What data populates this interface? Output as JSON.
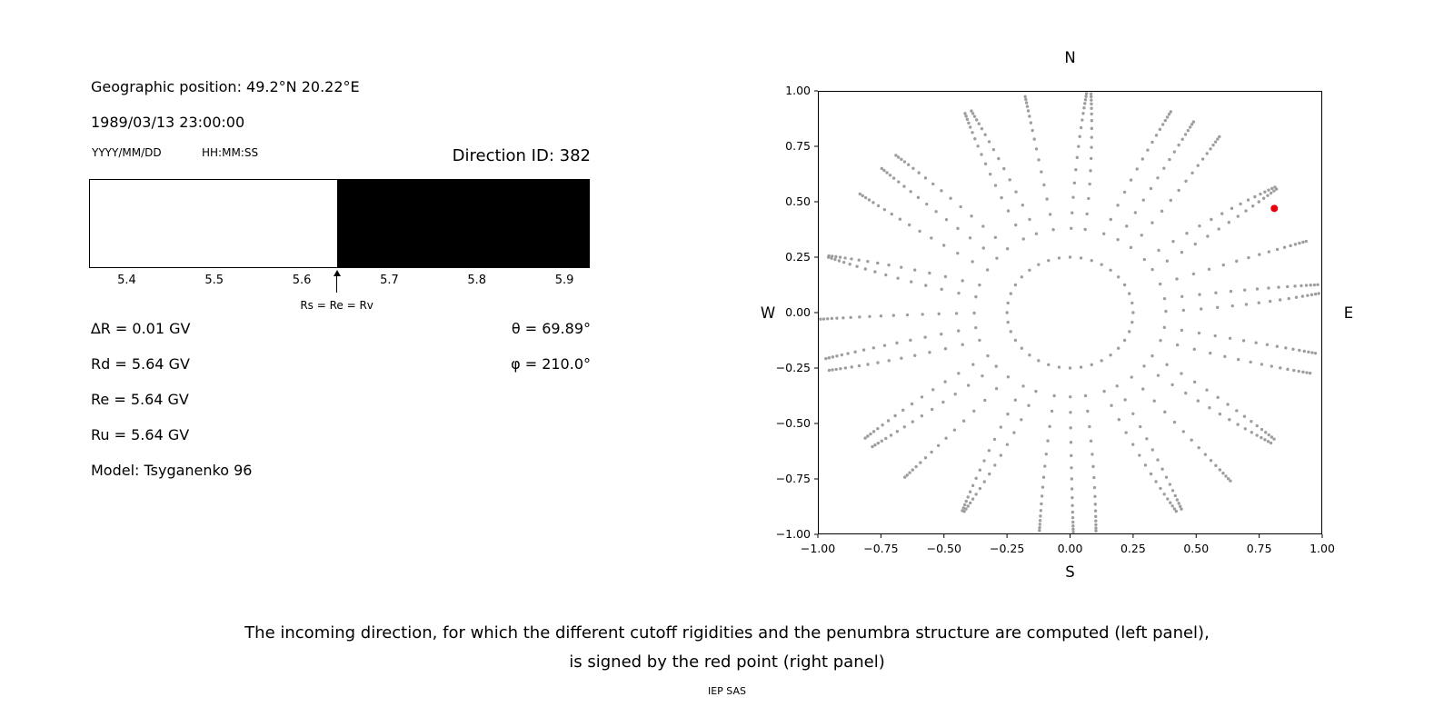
{
  "left_panel": {
    "geo_position": "Geographic position: 49.2°N 20.22°E",
    "datetime": "1989/03/13 23:00:00",
    "date_format_label": "YYYY/MM/DD",
    "time_format_label": "HH:MM:SS",
    "direction_id": "Direction ID: 382",
    "params": [
      "∆R = 0.01 GV",
      "Rd = 5.64 GV",
      "Re = 5.64 GV",
      "Ru = 5.64 GV",
      "Model: Tsyganenko 96"
    ],
    "angles": [
      "θ = 69.89°",
      "φ = 210.0°"
    ]
  },
  "caption": {
    "line1": "The incoming direction, for which the different cutoff rigidities and the penumbra structure are computed (left panel),",
    "line2": "is signed by the red point (right panel)",
    "credit": "IEP SAS"
  },
  "chart_data": [
    {
      "id": "penumbra",
      "type": "bar",
      "title": "",
      "x_range": [
        5.357,
        5.929
      ],
      "boundary": 5.64,
      "left_color": "#ffffff",
      "right_color": "#000000",
      "x_ticks": [
        {
          "label": "5.4",
          "value": 5.4
        },
        {
          "label": "5.5",
          "value": 5.5
        },
        {
          "label": "5.6",
          "value": 5.6
        },
        {
          "label": "5.7",
          "value": 5.7
        },
        {
          "label": "5.8",
          "value": 5.8
        },
        {
          "label": "5.9",
          "value": 5.9
        }
      ],
      "arrow": {
        "x": 5.64,
        "label": "Rs = Re = Rv"
      }
    },
    {
      "id": "direction-map",
      "type": "scatter",
      "xlim": [
        -1,
        1
      ],
      "ylim": [
        -1,
        1
      ],
      "grid": false,
      "compass_labels": {
        "top": "N",
        "bottom": "S",
        "left": "W",
        "right": "E"
      },
      "x_ticks": [
        {
          "label": "−1.00",
          "value": -1.0
        },
        {
          "label": "−0.75",
          "value": -0.75
        },
        {
          "label": "−0.50",
          "value": -0.5
        },
        {
          "label": "−0.25",
          "value": -0.25
        },
        {
          "label": "0.00",
          "value": 0.0
        },
        {
          "label": "0.25",
          "value": 0.25
        },
        {
          "label": "0.50",
          "value": 0.5
        },
        {
          "label": "0.75",
          "value": 0.75
        },
        {
          "label": "1.00",
          "value": 1.0
        }
      ],
      "y_ticks": [
        {
          "label": "1.00",
          "value": 1.0
        },
        {
          "label": "0.75",
          "value": 0.75
        },
        {
          "label": "0.50",
          "value": 0.5
        },
        {
          "label": "0.25",
          "value": 0.25
        },
        {
          "label": "0.00",
          "value": 0.0
        },
        {
          "label": "−0.25",
          "value": -0.25
        },
        {
          "label": "−0.50",
          "value": -0.5
        },
        {
          "label": "−0.75",
          "value": -0.75
        },
        {
          "label": "−1.00",
          "value": -1.0
        }
      ],
      "dot_color": "#949494",
      "spokes": {
        "count": 36,
        "angle_step_deg": 10,
        "radii": [
          0.25,
          0.38,
          0.45,
          0.52,
          0.585,
          0.645,
          0.7,
          0.75,
          0.795,
          0.835,
          0.87,
          0.9,
          0.925,
          0.945,
          0.962,
          0.977,
          0.99
        ]
      },
      "red_point": {
        "x": 0.81,
        "y": 0.47,
        "color": "#e8000b"
      }
    }
  ]
}
